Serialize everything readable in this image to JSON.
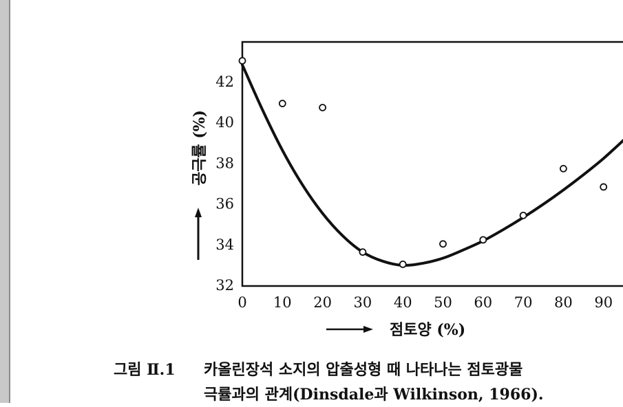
{
  "chart_data": {
    "type": "scatter",
    "xlabel": "점토양 (%)",
    "ylabel": "공극률 (%)",
    "xlim": [
      0,
      95
    ],
    "ylim": [
      32,
      44
    ],
    "x_ticks": [
      "0",
      "10",
      "20",
      "30",
      "40",
      "50",
      "60",
      "70",
      "80",
      "90"
    ],
    "y_ticks": [
      "32",
      "34",
      "36",
      "38",
      "40",
      "42"
    ],
    "grid": false,
    "points": [
      {
        "x": 0,
        "y": 43.0
      },
      {
        "x": 10,
        "y": 40.9
      },
      {
        "x": 20,
        "y": 40.7
      },
      {
        "x": 30,
        "y": 33.6
      },
      {
        "x": 40,
        "y": 33.0
      },
      {
        "x": 50,
        "y": 34.0
      },
      {
        "x": 60,
        "y": 34.2
      },
      {
        "x": 70,
        "y": 35.4
      },
      {
        "x": 80,
        "y": 37.7
      },
      {
        "x": 90,
        "y": 36.8
      }
    ],
    "curve": {
      "x": [
        0,
        5,
        10,
        15,
        20,
        25,
        30,
        35,
        40,
        45,
        50,
        55,
        60,
        65,
        70,
        75,
        80,
        85,
        90,
        95
      ],
      "y": [
        42.8,
        40.6,
        38.6,
        36.9,
        35.5,
        34.4,
        33.6,
        33.15,
        32.95,
        33.05,
        33.3,
        33.7,
        34.15,
        34.7,
        35.3,
        35.95,
        36.65,
        37.4,
        38.2,
        39.1
      ]
    }
  },
  "caption": {
    "number": "그림 Ⅱ.1",
    "line1": "카올린장석 소지의 압출성형 때 나타나는 점토광물",
    "line2": "극률과의 관계(Dinsdale과 Wilkinson, 1966)."
  }
}
